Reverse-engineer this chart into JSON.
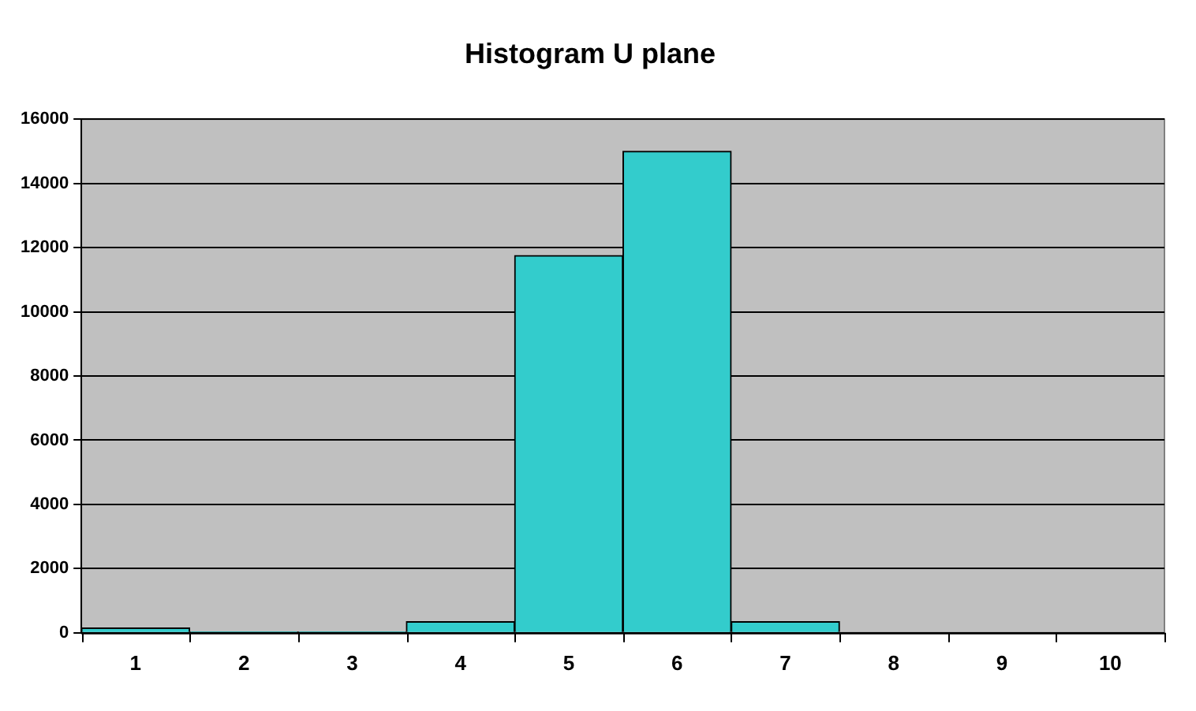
{
  "chart_data": {
    "type": "histogram",
    "title": "Histogram U plane",
    "bins": [
      0.5,
      1.5,
      2.5,
      3.5,
      4.5,
      5.5,
      6.5,
      7.5,
      8.5,
      9.5,
      10.5
    ],
    "values": [
      150,
      30,
      30,
      350,
      11750,
      15000,
      350,
      0,
      0,
      0
    ],
    "color": "#33cccc",
    "xlim": [
      0.5,
      10.5
    ],
    "xticks": [
      1,
      2,
      3,
      4,
      5,
      6,
      7,
      8,
      9,
      10
    ],
    "ylim": [
      0,
      16000
    ],
    "yticks": [
      0,
      2000,
      4000,
      6000,
      8000,
      10000,
      12000,
      14000,
      16000
    ],
    "grid": "y",
    "legend": false
  }
}
